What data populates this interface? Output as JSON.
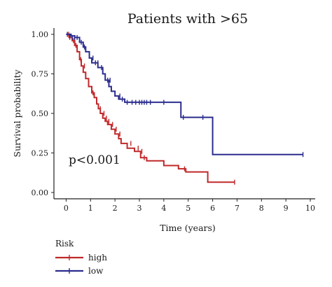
{
  "chart_data": {
    "type": "line",
    "title": "Patients with >65",
    "xlabel": "Time (years)",
    "ylabel": "Survival probability",
    "xlim": [
      -0.5,
      10.2
    ],
    "ylim": [
      -0.04,
      1.04
    ],
    "x_ticks": [
      0,
      1,
      2,
      3,
      4,
      5,
      6,
      7,
      8,
      9,
      10
    ],
    "x_tick_labels": [
      "0",
      "1",
      "2",
      "3",
      "4",
      "5",
      "6",
      "7",
      "8",
      "9",
      "10"
    ],
    "y_ticks": [
      0,
      0.25,
      0.5,
      0.75,
      1.0
    ],
    "y_tick_labels": [
      "0.00",
      "0.25",
      "0.50",
      "0.75",
      "1.00"
    ],
    "annotation": "p<0.001",
    "legend": {
      "title": "Risk",
      "placement": "bottom-left"
    },
    "series": [
      {
        "name": "high",
        "color": "#c0282a",
        "style": "step",
        "x": [
          0,
          0.12,
          0.25,
          0.35,
          0.45,
          0.55,
          0.62,
          0.7,
          0.8,
          0.92,
          1.05,
          1.15,
          1.25,
          1.32,
          1.4,
          1.5,
          1.6,
          1.7,
          1.85,
          2.0,
          2.15,
          2.25,
          2.5,
          2.8,
          3.05,
          3.3,
          4.0,
          4.6,
          4.9,
          5.8,
          6.9
        ],
        "y": [
          1.0,
          0.98,
          0.96,
          0.93,
          0.89,
          0.84,
          0.8,
          0.76,
          0.72,
          0.67,
          0.63,
          0.6,
          0.56,
          0.53,
          0.5,
          0.47,
          0.45,
          0.43,
          0.4,
          0.37,
          0.34,
          0.31,
          0.28,
          0.26,
          0.22,
          0.2,
          0.17,
          0.15,
          0.13,
          0.065,
          0.065
        ],
        "censor_x": [
          0.1,
          0.15,
          0.3,
          0.4,
          0.6,
          0.75,
          1.1,
          1.4,
          1.55,
          1.65,
          1.75,
          1.9,
          2.05,
          2.2,
          2.65,
          2.95,
          3.1,
          3.2,
          4.85,
          6.9
        ],
        "censor_y": [
          1.0,
          0.98,
          0.96,
          0.93,
          0.84,
          0.8,
          0.63,
          0.53,
          0.5,
          0.47,
          0.45,
          0.43,
          0.4,
          0.37,
          0.31,
          0.28,
          0.26,
          0.22,
          0.15,
          0.065
        ]
      },
      {
        "name": "low",
        "color": "#2b2d8e",
        "style": "step",
        "x": [
          0,
          0.2,
          0.35,
          0.55,
          0.7,
          0.8,
          0.95,
          1.05,
          1.3,
          1.5,
          1.6,
          1.75,
          1.85,
          2.0,
          2.15,
          2.4,
          3.3,
          4.7,
          5.9,
          6.0,
          9.7
        ],
        "y": [
          1.0,
          0.99,
          0.98,
          0.95,
          0.92,
          0.89,
          0.85,
          0.82,
          0.79,
          0.75,
          0.71,
          0.67,
          0.64,
          0.61,
          0.59,
          0.57,
          0.57,
          0.475,
          0.475,
          0.24,
          0.24
        ],
        "censor_x": [
          0.05,
          0.15,
          0.25,
          0.35,
          0.45,
          0.62,
          0.75,
          1.1,
          1.2,
          1.3,
          1.45,
          1.7,
          1.8,
          2.2,
          2.3,
          2.5,
          2.7,
          2.85,
          3.0,
          3.1,
          3.2,
          3.3,
          3.45,
          4.0,
          4.8,
          5.6,
          9.7
        ],
        "censor_y": [
          1.0,
          0.99,
          0.98,
          0.98,
          0.98,
          0.95,
          0.92,
          0.85,
          0.82,
          0.82,
          0.79,
          0.71,
          0.71,
          0.61,
          0.59,
          0.57,
          0.57,
          0.57,
          0.57,
          0.57,
          0.57,
          0.57,
          0.57,
          0.57,
          0.475,
          0.475,
          0.24
        ]
      }
    ]
  }
}
